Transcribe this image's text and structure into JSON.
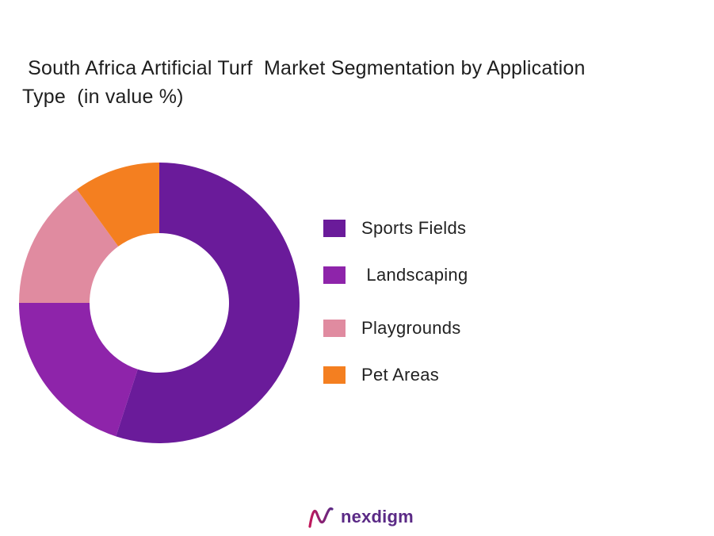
{
  "chart_data": {
    "type": "pie",
    "variant": "donut",
    "title": " South Africa Artificial Turf  Market Segmentation by Application Type  (in value %)",
    "categories": [
      "Sports Fields",
      " Landscaping",
      "Playgrounds",
      "Pet Areas"
    ],
    "values": [
      55,
      20,
      15,
      10
    ],
    "unit": "%",
    "colors": [
      "#6a1b9a",
      "#8e24aa",
      "#e08ba0",
      "#f47f20"
    ],
    "legend_position": "right",
    "start_angle": "12 o'clock, clockwise"
  },
  "logo": {
    "text": "nexdigm",
    "icon": "nexdigm-wave-icon",
    "color": "#5b2a86"
  }
}
